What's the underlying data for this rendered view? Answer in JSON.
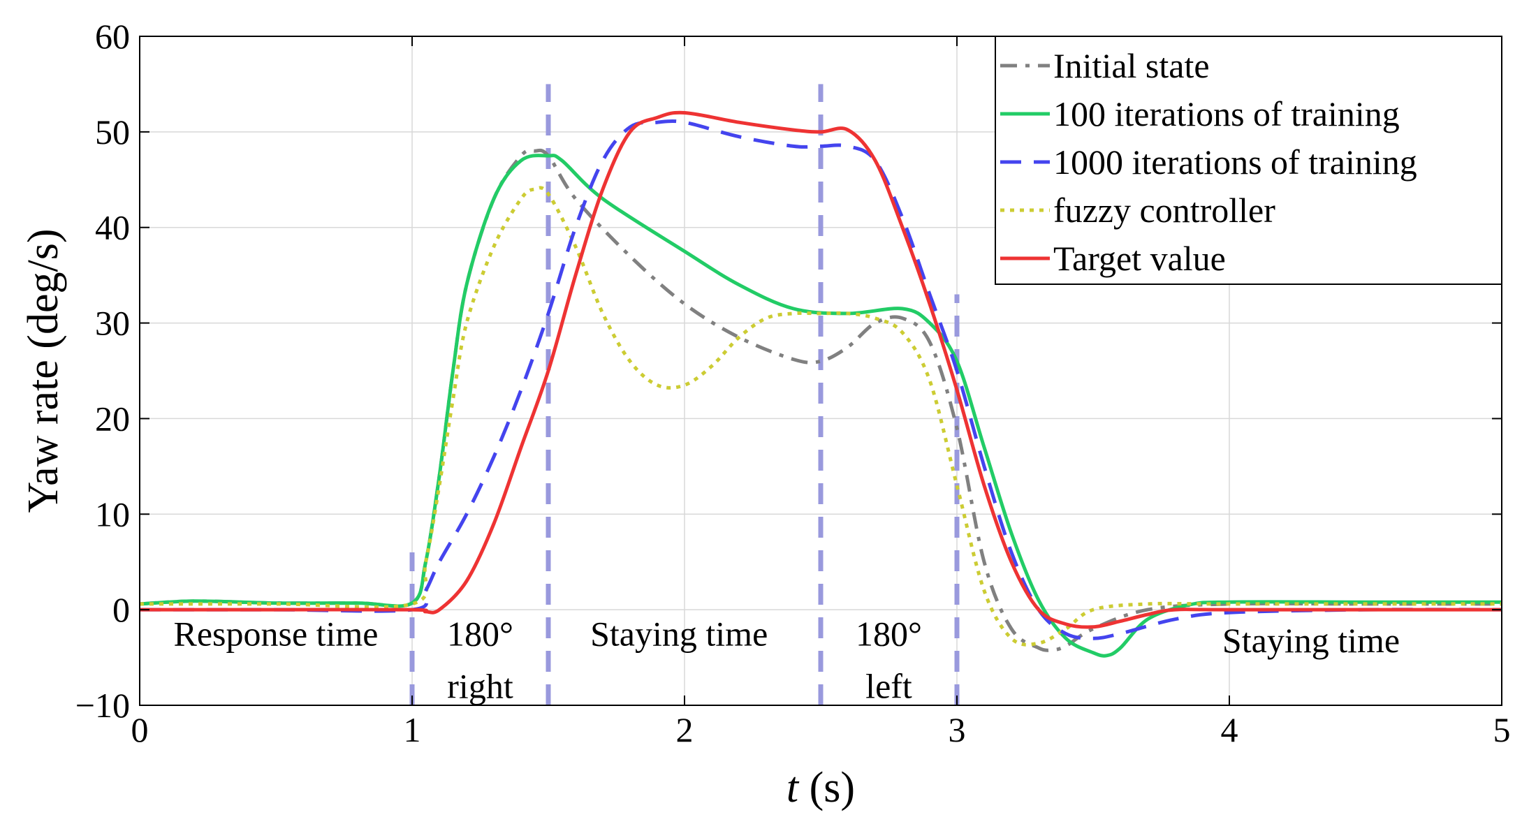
{
  "chart_data": {
    "type": "line",
    "xlabel_italic": "t",
    "xlabel_unit": " (s)",
    "ylabel": "Yaw rate (deg/s)",
    "xlim": [
      0,
      5
    ],
    "ylim": [
      -10,
      60
    ],
    "xticks": [
      0,
      1,
      2,
      3,
      4,
      5
    ],
    "xtick_labels": [
      "0",
      "1",
      "2",
      "3",
      "4",
      "5"
    ],
    "yticks": [
      -10,
      0,
      10,
      20,
      30,
      40,
      50,
      60
    ],
    "ytick_labels": [
      "−10",
      "0",
      "10",
      "20",
      "30",
      "40",
      "50",
      "60"
    ],
    "grid": true,
    "legend_position": "top-right",
    "series": [
      {
        "name": "Initial state",
        "color": "#808080",
        "style": "dashdot",
        "x": [
          0,
          0.2,
          0.5,
          0.8,
          1.0,
          1.05,
          1.1,
          1.15,
          1.2,
          1.3,
          1.4,
          1.45,
          1.5,
          1.6,
          1.8,
          2.0,
          2.2,
          2.4,
          2.5,
          2.6,
          2.7,
          2.8,
          2.9,
          3.0,
          3.1,
          3.2,
          3.3,
          3.35,
          3.4,
          3.5,
          3.7,
          4.0,
          4.5,
          5.0
        ],
        "y": [
          0.6,
          0.9,
          0.7,
          0.7,
          0.7,
          5,
          14,
          25,
          34,
          43,
          47.5,
          48,
          47.5,
          43,
          37,
          32,
          28.5,
          26.2,
          26,
          27.5,
          30,
          30.5,
          28,
          19,
          5,
          -2,
          -4,
          -4.2,
          -3.8,
          -2,
          0,
          0.6,
          0.6,
          0.6
        ]
      },
      {
        "name": "100 iterations of training",
        "color": "#22cc66",
        "style": "solid",
        "x": [
          0,
          0.2,
          0.5,
          0.8,
          1.0,
          1.05,
          1.1,
          1.15,
          1.2,
          1.3,
          1.4,
          1.5,
          1.55,
          1.7,
          2.0,
          2.2,
          2.4,
          2.6,
          2.8,
          2.9,
          3.0,
          3.1,
          3.2,
          3.3,
          3.4,
          3.5,
          3.55,
          3.6,
          3.7,
          3.85,
          4.0,
          4.5,
          5.0
        ],
        "y": [
          0.6,
          0.9,
          0.7,
          0.7,
          0.7,
          5,
          14,
          25,
          34,
          43,
          47,
          47.5,
          47,
          43,
          37.5,
          34,
          31.5,
          31,
          31.5,
          30,
          26,
          17,
          8,
          1,
          -3,
          -4.5,
          -4.8,
          -4,
          -1,
          0.5,
          0.8,
          0.8,
          0.8
        ]
      },
      {
        "name": "1000 iterations of training",
        "color": "#4444ee",
        "style": "dashed",
        "x": [
          0,
          0.5,
          1.0,
          1.05,
          1.1,
          1.2,
          1.3,
          1.4,
          1.5,
          1.6,
          1.7,
          1.8,
          1.9,
          2.0,
          2.2,
          2.4,
          2.5,
          2.6,
          2.7,
          2.8,
          2.9,
          3.0,
          3.1,
          3.2,
          3.3,
          3.4,
          3.5,
          3.6,
          3.8,
          4.0,
          4.5,
          5.0
        ],
        "y": [
          0,
          0,
          0,
          2,
          5,
          10,
          16,
          23,
          31,
          40,
          47,
          50.5,
          51,
          51,
          49.5,
          48.5,
          48.5,
          48.5,
          47,
          41,
          33,
          25,
          15,
          6,
          0,
          -2.5,
          -3,
          -2.5,
          -1,
          -0.3,
          0,
          0
        ]
      },
      {
        "name": "fuzzy controller",
        "color": "#cccc33",
        "style": "dotted",
        "x": [
          0,
          0.5,
          1.0,
          1.05,
          1.1,
          1.15,
          1.2,
          1.3,
          1.4,
          1.45,
          1.5,
          1.6,
          1.7,
          1.8,
          1.9,
          2.0,
          2.1,
          2.2,
          2.3,
          2.4,
          2.5,
          2.6,
          2.7,
          2.8,
          2.9,
          3.0,
          3.1,
          3.2,
          3.3,
          3.4,
          3.5,
          3.7,
          4.0,
          5.0
        ],
        "y": [
          0.6,
          0.6,
          0.6,
          5,
          13,
          22,
          30,
          38,
          43,
          44,
          43.5,
          38,
          31,
          26,
          23.5,
          23.5,
          25.5,
          28.5,
          30.5,
          31,
          31,
          31,
          30.5,
          29,
          24,
          13,
          2,
          -3,
          -3.5,
          -2,
          0,
          0.6,
          0.6,
          0.6
        ]
      },
      {
        "name": "Target value",
        "color": "#ee3333",
        "style": "solid",
        "x": [
          0,
          0.5,
          1.0,
          1.05,
          1.1,
          1.2,
          1.3,
          1.4,
          1.5,
          1.6,
          1.7,
          1.8,
          1.9,
          2.0,
          2.2,
          2.4,
          2.5,
          2.6,
          2.7,
          2.8,
          2.9,
          3.0,
          3.1,
          3.2,
          3.3,
          3.4,
          3.5,
          3.6,
          3.7,
          3.8,
          4.0,
          5.0
        ],
        "y": [
          0,
          0,
          0,
          -0.2,
          0,
          3,
          9,
          17,
          25,
          35,
          44,
          50,
          51.5,
          52,
          51,
          50.2,
          50,
          50.2,
          47,
          40,
          32,
          23,
          13,
          5,
          0,
          -1.5,
          -1.8,
          -1.2,
          -0.5,
          0,
          0,
          0
        ]
      }
    ],
    "phase_dividers": [
      {
        "x": 1.0,
        "ymin": -10,
        "ymax": 6
      },
      {
        "x": 1.5,
        "ymin": -10,
        "ymax": 55
      },
      {
        "x": 2.5,
        "ymin": -10,
        "ymax": 55
      },
      {
        "x": 3.0,
        "ymin": -10,
        "ymax": 33
      }
    ],
    "divider_color": "#9999dd",
    "annotations": [
      {
        "text": "Response time",
        "x": 0.5,
        "y": -2.5
      },
      {
        "text": "180°",
        "x": 1.25,
        "y": -2.5
      },
      {
        "text": "right",
        "x": 1.25,
        "y": -8
      },
      {
        "text": "Staying time",
        "x": 1.98,
        "y": -2.5
      },
      {
        "text": "180°",
        "x": 2.75,
        "y": -2.5
      },
      {
        "text": "left",
        "x": 2.75,
        "y": -8
      },
      {
        "text": "Staying time",
        "x": 4.3,
        "y": -3.2
      }
    ]
  }
}
